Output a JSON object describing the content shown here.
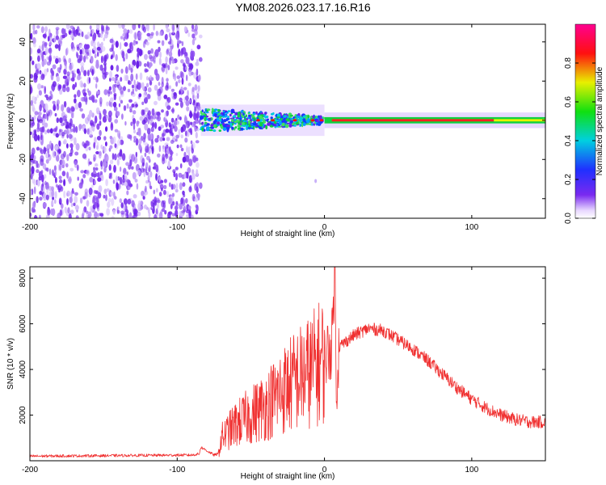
{
  "figure": {
    "title": "YM08.2026.023.17.16.R16"
  },
  "chart_data": [
    {
      "type": "heatmap",
      "title": "YM08.2026.023.17.16.R16",
      "xlabel": "Height of straight line (km)",
      "ylabel": "Frequency (Hz)",
      "xlim": [
        -200,
        150
      ],
      "ylim": [
        -50,
        49
      ],
      "xticks": [
        -200,
        -100,
        0,
        100
      ],
      "yticks": [
        -40,
        -20,
        0,
        20,
        40
      ],
      "colorbar": {
        "label": "Normalized spectral amplitude",
        "range": [
          0,
          1
        ],
        "ticks": [
          0.0,
          0.2,
          0.4,
          0.6,
          0.8
        ],
        "tick_labels": [
          "0.0",
          "0.2",
          "0.4",
          "0.6",
          "0.8"
        ],
        "colormap": "rainbow (white-purple-blue-cyan-green-yellow-red-magenta)"
      },
      "regions": [
        {
          "x_range": [
            -200,
            -84
          ],
          "description": "broadband noise",
          "amplitude": 0.08
        },
        {
          "x_range": [
            -84,
            0
          ],
          "description": "band around 0 Hz, width ~12 Hz",
          "amplitude": 0.45
        },
        {
          "x_range": [
            0,
            150
          ],
          "description": "narrow line at ~0 Hz",
          "amplitude": 0.9
        }
      ]
    },
    {
      "type": "line",
      "xlabel": "Height of straight line (km)",
      "ylabel": "SNR (10 * v/v)",
      "xlim": [
        -200,
        150
      ],
      "ylim": [
        0,
        8500
      ],
      "xticks": [
        -200,
        -100,
        0,
        100
      ],
      "yticks": [
        2000,
        4000,
        6000,
        8000
      ],
      "color": "#f03030",
      "series": [
        {
          "name": "SNR",
          "x": [
            -200,
            -90,
            -85,
            -84,
            -75,
            -72,
            -70,
            -60,
            -50,
            -40,
            -30,
            -20,
            -10,
            0,
            5,
            7,
            8,
            10,
            20,
            30,
            40,
            50,
            60,
            70,
            80,
            90,
            100,
            110,
            120,
            130,
            140,
            150
          ],
          "y": [
            200,
            250,
            300,
            600,
            250,
            300,
            1000,
            1600,
            2000,
            2400,
            3000,
            3500,
            3900,
            4500,
            5100,
            8500,
            3200,
            5000,
            5500,
            5800,
            5700,
            5300,
            4900,
            4400,
            3800,
            3200,
            2700,
            2300,
            2000,
            1800,
            1700,
            1700
          ]
        }
      ]
    }
  ]
}
